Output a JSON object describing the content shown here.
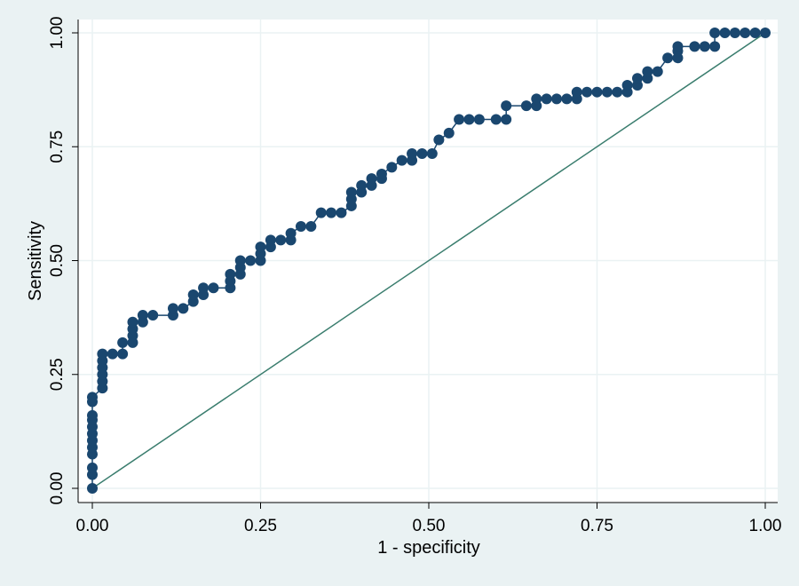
{
  "chart_data": {
    "type": "line",
    "title": "",
    "xlabel": "1 - specificity",
    "ylabel": "Sensitivity",
    "xlim": [
      0,
      1
    ],
    "ylim": [
      0,
      1
    ],
    "xticks": [
      "0.00",
      "0.25",
      "0.50",
      "0.75",
      "1.00"
    ],
    "yticks": [
      "0.00",
      "0.25",
      "0.50",
      "0.75",
      "1.00"
    ],
    "grid": true,
    "legend": "none",
    "series": [
      {
        "marker": "circle",
        "color": "#1a476f",
        "points": [
          [
            0.0,
            0.0
          ],
          [
            0.0,
            0.03
          ],
          [
            0.0,
            0.045
          ],
          [
            0.0,
            0.075
          ],
          [
            0.0,
            0.09
          ],
          [
            0.0,
            0.105
          ],
          [
            0.0,
            0.12
          ],
          [
            0.0,
            0.135
          ],
          [
            0.0,
            0.15
          ],
          [
            0.0,
            0.16
          ],
          [
            0.0,
            0.19
          ],
          [
            0.0,
            0.2
          ],
          [
            0.015,
            0.22
          ],
          [
            0.015,
            0.235
          ],
          [
            0.015,
            0.25
          ],
          [
            0.015,
            0.265
          ],
          [
            0.015,
            0.28
          ],
          [
            0.015,
            0.295
          ],
          [
            0.03,
            0.295
          ],
          [
            0.045,
            0.295
          ],
          [
            0.045,
            0.32
          ],
          [
            0.06,
            0.32
          ],
          [
            0.06,
            0.335
          ],
          [
            0.06,
            0.35
          ],
          [
            0.06,
            0.365
          ],
          [
            0.075,
            0.365
          ],
          [
            0.075,
            0.38
          ],
          [
            0.09,
            0.38
          ],
          [
            0.12,
            0.38
          ],
          [
            0.12,
            0.395
          ],
          [
            0.135,
            0.395
          ],
          [
            0.15,
            0.41
          ],
          [
            0.15,
            0.425
          ],
          [
            0.165,
            0.425
          ],
          [
            0.165,
            0.44
          ],
          [
            0.18,
            0.44
          ],
          [
            0.205,
            0.44
          ],
          [
            0.205,
            0.455
          ],
          [
            0.205,
            0.47
          ],
          [
            0.22,
            0.47
          ],
          [
            0.22,
            0.485
          ],
          [
            0.22,
            0.5
          ],
          [
            0.235,
            0.5
          ],
          [
            0.25,
            0.5
          ],
          [
            0.25,
            0.515
          ],
          [
            0.25,
            0.53
          ],
          [
            0.265,
            0.53
          ],
          [
            0.265,
            0.545
          ],
          [
            0.28,
            0.545
          ],
          [
            0.295,
            0.545
          ],
          [
            0.295,
            0.56
          ],
          [
            0.31,
            0.575
          ],
          [
            0.325,
            0.575
          ],
          [
            0.34,
            0.605
          ],
          [
            0.355,
            0.605
          ],
          [
            0.37,
            0.605
          ],
          [
            0.385,
            0.62
          ],
          [
            0.385,
            0.635
          ],
          [
            0.385,
            0.65
          ],
          [
            0.4,
            0.65
          ],
          [
            0.4,
            0.665
          ],
          [
            0.415,
            0.665
          ],
          [
            0.415,
            0.68
          ],
          [
            0.43,
            0.68
          ],
          [
            0.43,
            0.69
          ],
          [
            0.445,
            0.705
          ],
          [
            0.46,
            0.72
          ],
          [
            0.475,
            0.72
          ],
          [
            0.475,
            0.735
          ],
          [
            0.49,
            0.735
          ],
          [
            0.505,
            0.735
          ],
          [
            0.515,
            0.765
          ],
          [
            0.53,
            0.78
          ],
          [
            0.545,
            0.81
          ],
          [
            0.56,
            0.81
          ],
          [
            0.575,
            0.81
          ],
          [
            0.6,
            0.81
          ],
          [
            0.615,
            0.81
          ],
          [
            0.615,
            0.84
          ],
          [
            0.645,
            0.84
          ],
          [
            0.66,
            0.84
          ],
          [
            0.66,
            0.855
          ],
          [
            0.675,
            0.855
          ],
          [
            0.69,
            0.855
          ],
          [
            0.705,
            0.855
          ],
          [
            0.72,
            0.855
          ],
          [
            0.72,
            0.87
          ],
          [
            0.735,
            0.87
          ],
          [
            0.75,
            0.87
          ],
          [
            0.765,
            0.87
          ],
          [
            0.78,
            0.87
          ],
          [
            0.795,
            0.87
          ],
          [
            0.795,
            0.885
          ],
          [
            0.81,
            0.885
          ],
          [
            0.81,
            0.9
          ],
          [
            0.825,
            0.9
          ],
          [
            0.825,
            0.915
          ],
          [
            0.84,
            0.915
          ],
          [
            0.855,
            0.945
          ],
          [
            0.87,
            0.945
          ],
          [
            0.87,
            0.96
          ],
          [
            0.87,
            0.97
          ],
          [
            0.895,
            0.97
          ],
          [
            0.91,
            0.97
          ],
          [
            0.925,
            0.97
          ],
          [
            0.925,
            1.0
          ],
          [
            0.94,
            1.0
          ],
          [
            0.955,
            1.0
          ],
          [
            0.97,
            1.0
          ],
          [
            0.985,
            1.0
          ],
          [
            1.0,
            1.0
          ]
        ]
      },
      {
        "marker": "none",
        "color": "#3a7d6e",
        "points": [
          [
            0,
            0
          ],
          [
            1,
            1
          ]
        ]
      }
    ]
  }
}
